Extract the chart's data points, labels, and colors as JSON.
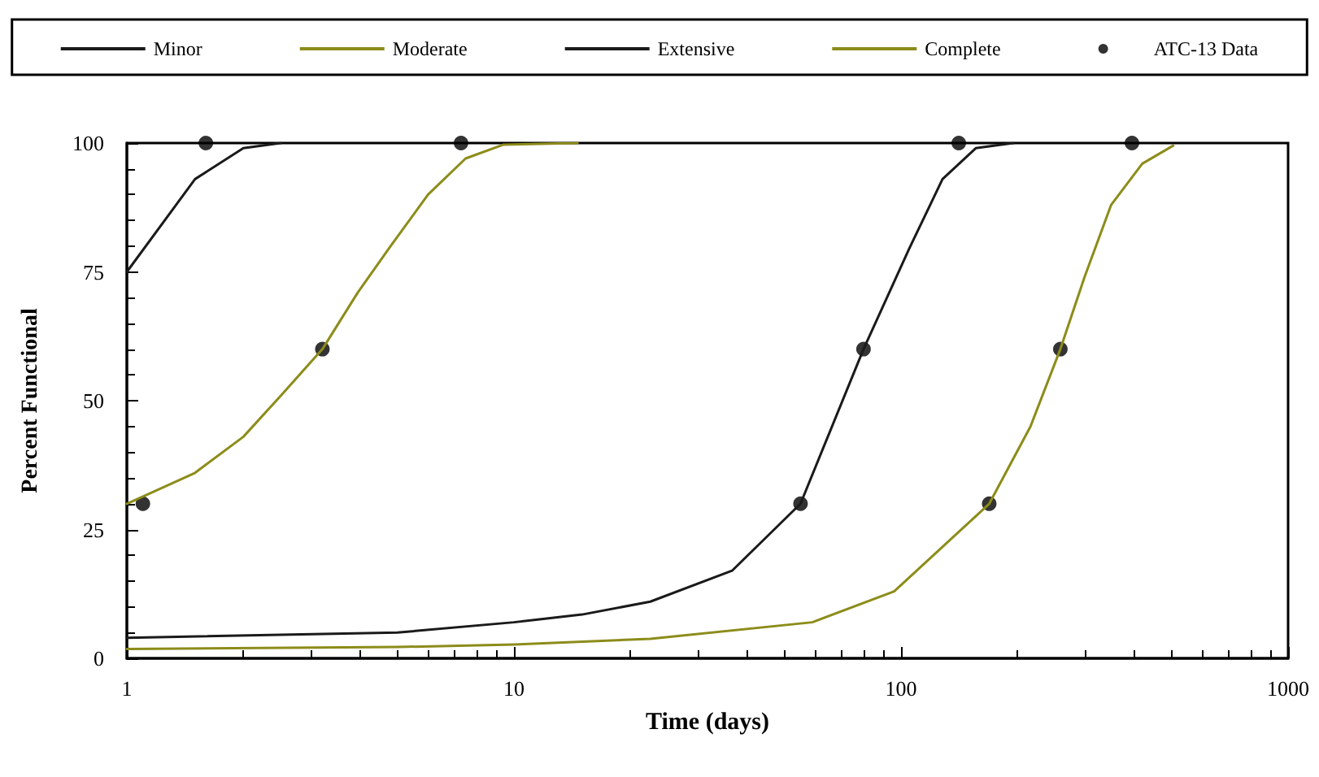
{
  "chart_data": {
    "type": "line",
    "xlabel": "Time (days)",
    "ylabel": "Percent Functional",
    "log": "x",
    "xlim": [
      1,
      1000
    ],
    "xticks": [
      1,
      10,
      100,
      1000
    ],
    "ylim": [
      0,
      100
    ],
    "yticks": [
      0,
      25,
      50,
      75,
      100
    ],
    "grid": false,
    "legend": "top",
    "marker": "none",
    "line_style": "solid",
    "series": [
      {
        "name": "Minor",
        "color": "#1a1a1a",
        "x": [
          1,
          1.5,
          2,
          2.5
        ],
        "values": [
          75,
          93,
          99,
          100
        ]
      },
      {
        "name": "Moderate",
        "color": "#8c8c1a",
        "x": [
          1,
          1.5,
          2,
          2.5,
          3.2,
          3.95,
          4.8,
          6,
          7.5,
          9.4,
          14.6
        ],
        "values": [
          30,
          36,
          43,
          51,
          60,
          71,
          80,
          90,
          97,
          99.7,
          100
        ]
      },
      {
        "name": "Extensive",
        "color": "#1a1a1a",
        "x": [
          1,
          5,
          10,
          15,
          22.5,
          36.6,
          55,
          80,
          105,
          128,
          156,
          195
        ],
        "values": [
          4,
          5,
          7,
          8.5,
          11,
          17,
          30,
          60,
          79.5,
          93,
          99,
          100
        ]
      },
      {
        "name": "Complete",
        "color": "#8c8c1a",
        "x": [
          1,
          5,
          10,
          22.5,
          59,
          96,
          169,
          216,
          258,
          298,
          349,
          420,
          505
        ],
        "values": [
          1.8,
          2.2,
          2.7,
          3.8,
          7,
          13,
          30,
          45,
          60,
          74,
          88,
          96,
          99.5
        ]
      },
      {
        "name": "ATC-13 Data",
        "type": "scatter",
        "marker": "circle",
        "color": "#000000",
        "x": [
          1.6,
          7.3,
          1.1,
          3.2,
          55,
          80,
          141,
          169,
          258,
          395
        ],
        "values": [
          100,
          100,
          30,
          60,
          30,
          60,
          100,
          30,
          60,
          100
        ]
      }
    ]
  }
}
